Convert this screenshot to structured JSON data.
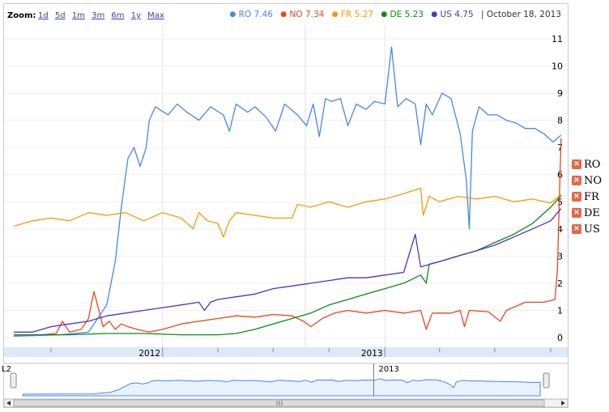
{
  "zoom": {
    "label": "Zoom:",
    "options": [
      "1d",
      "5d",
      "1m",
      "3m",
      "6m",
      "1y",
      "Max"
    ]
  },
  "readout": {
    "items": [
      {
        "code": "RO",
        "value": "7.46",
        "color": "#4a86e8"
      },
      {
        "code": "NO",
        "value": "7.34",
        "color": "#e8461c"
      },
      {
        "code": "FR",
        "value": "5.27",
        "color": "#f59a0a"
      },
      {
        "code": "DE",
        "value": "5.23",
        "color": "#0a8a18"
      },
      {
        "code": "US",
        "value": "4.75",
        "color": "#5533bb"
      }
    ],
    "date": "October 18, 2013"
  },
  "legend": {
    "items": [
      {
        "name": "RO",
        "icon": "remove-icon"
      },
      {
        "name": "NO",
        "icon": "remove-icon"
      },
      {
        "name": "FR",
        "icon": "remove-icon"
      },
      {
        "name": "DE",
        "icon": "remove-icon"
      },
      {
        "name": "US",
        "icon": "remove-icon"
      }
    ]
  },
  "navigator": {
    "tick_label": "2013",
    "left_label": "L2"
  },
  "chart_data": {
    "type": "line",
    "x_labels": [
      "2012",
      "2013"
    ],
    "x_label_dates": [
      "2012-01-01",
      "2013-01-01"
    ],
    "ylim": [
      0,
      11
    ],
    "y_ticks": [
      0,
      1,
      2,
      3,
      4,
      5,
      6,
      7,
      8,
      9,
      10,
      11
    ],
    "grid": true,
    "legend_position": "top-right",
    "series": [
      {
        "name": "RO",
        "color": "#4a86e8",
        "values": [
          [
            "2011-05-01",
            0.05
          ],
          [
            "2011-07-15",
            0.1
          ],
          [
            "2011-09-01",
            0.2
          ],
          [
            "2011-10-01",
            1.2
          ],
          [
            "2011-10-15",
            2.8
          ],
          [
            "2011-10-25",
            4.8
          ],
          [
            "2011-11-05",
            6.6
          ],
          [
            "2011-11-15",
            7.0
          ],
          [
            "2011-11-25",
            6.3
          ],
          [
            "2011-12-05",
            7.0
          ],
          [
            "2011-12-10",
            8.0
          ],
          [
            "2011-12-20",
            8.5
          ],
          [
            "2012-01-10",
            8.2
          ],
          [
            "2012-01-25",
            8.6
          ],
          [
            "2012-02-10",
            8.3
          ],
          [
            "2012-03-01",
            8.0
          ],
          [
            "2012-03-20",
            8.5
          ],
          [
            "2012-04-10",
            8.2
          ],
          [
            "2012-04-20",
            7.6
          ],
          [
            "2012-05-01",
            8.6
          ],
          [
            "2012-05-20",
            8.3
          ],
          [
            "2012-06-01",
            8.5
          ],
          [
            "2012-06-20",
            8.1
          ],
          [
            "2012-07-05",
            7.6
          ],
          [
            "2012-07-20",
            8.6
          ],
          [
            "2012-08-10",
            8.2
          ],
          [
            "2012-08-25",
            7.8
          ],
          [
            "2012-09-05",
            8.6
          ],
          [
            "2012-09-15",
            7.4
          ],
          [
            "2012-09-25",
            8.8
          ],
          [
            "2012-10-05",
            8.7
          ],
          [
            "2012-10-20",
            8.8
          ],
          [
            "2012-11-01",
            7.8
          ],
          [
            "2012-11-15",
            8.6
          ],
          [
            "2012-12-01",
            8.4
          ],
          [
            "2012-12-15",
            8.7
          ],
          [
            "2013-01-01",
            8.6
          ],
          [
            "2013-01-12",
            10.7
          ],
          [
            "2013-01-22",
            8.5
          ],
          [
            "2013-02-05",
            8.8
          ],
          [
            "2013-02-20",
            8.6
          ],
          [
            "2013-03-01",
            7.1
          ],
          [
            "2013-03-10",
            8.6
          ],
          [
            "2013-03-20",
            8.2
          ],
          [
            "2013-04-05",
            9.0
          ],
          [
            "2013-04-20",
            8.8
          ],
          [
            "2013-05-05",
            7.5
          ],
          [
            "2013-05-15",
            5.8
          ],
          [
            "2013-05-20",
            4.0
          ],
          [
            "2013-05-25",
            7.6
          ],
          [
            "2013-06-05",
            8.5
          ],
          [
            "2013-06-20",
            8.2
          ],
          [
            "2013-07-05",
            8.2
          ],
          [
            "2013-07-20",
            8.0
          ],
          [
            "2013-08-05",
            7.9
          ],
          [
            "2013-08-20",
            7.7
          ],
          [
            "2013-09-05",
            7.7
          ],
          [
            "2013-09-20",
            7.5
          ],
          [
            "2013-10-05",
            7.2
          ],
          [
            "2013-10-18",
            7.46
          ]
        ]
      },
      {
        "name": "NO",
        "color": "#e8461c",
        "values": [
          [
            "2011-05-01",
            0.1
          ],
          [
            "2011-06-15",
            0.1
          ],
          [
            "2011-07-10",
            0.15
          ],
          [
            "2011-07-20",
            0.6
          ],
          [
            "2011-08-01",
            0.2
          ],
          [
            "2011-08-20",
            0.3
          ],
          [
            "2011-09-01",
            0.7
          ],
          [
            "2011-09-10",
            1.7
          ],
          [
            "2011-09-25",
            0.4
          ],
          [
            "2011-10-05",
            0.6
          ],
          [
            "2011-10-15",
            0.3
          ],
          [
            "2011-10-25",
            0.5
          ],
          [
            "2011-11-05",
            0.4
          ],
          [
            "2011-11-20",
            0.3
          ],
          [
            "2011-12-10",
            0.2
          ],
          [
            "2012-01-01",
            0.3
          ],
          [
            "2012-02-01",
            0.5
          ],
          [
            "2012-03-01",
            0.6
          ],
          [
            "2012-04-01",
            0.7
          ],
          [
            "2012-05-01",
            0.8
          ],
          [
            "2012-06-01",
            0.75
          ],
          [
            "2012-07-01",
            0.85
          ],
          [
            "2012-08-01",
            0.8
          ],
          [
            "2012-08-20",
            0.6
          ],
          [
            "2012-09-01",
            0.4
          ],
          [
            "2012-09-20",
            0.7
          ],
          [
            "2012-10-10",
            0.9
          ],
          [
            "2012-11-01",
            1.0
          ],
          [
            "2012-12-01",
            0.9
          ],
          [
            "2013-01-01",
            1.0
          ],
          [
            "2013-02-01",
            0.9
          ],
          [
            "2013-03-01",
            1.0
          ],
          [
            "2013-03-10",
            0.3
          ],
          [
            "2013-03-20",
            0.9
          ],
          [
            "2013-04-20",
            0.9
          ],
          [
            "2013-05-05",
            1.0
          ],
          [
            "2013-05-12",
            0.4
          ],
          [
            "2013-05-20",
            1.0
          ],
          [
            "2013-06-20",
            0.95
          ],
          [
            "2013-07-10",
            0.6
          ],
          [
            "2013-07-20",
            1.0
          ],
          [
            "2013-08-20",
            1.3
          ],
          [
            "2013-09-20",
            1.3
          ],
          [
            "2013-10-08",
            1.4
          ],
          [
            "2013-10-12",
            2.5
          ],
          [
            "2013-10-18",
            7.34
          ]
        ]
      },
      {
        "name": "FR",
        "color": "#f59a0a",
        "values": [
          [
            "2011-05-01",
            4.1
          ],
          [
            "2011-06-01",
            4.3
          ],
          [
            "2011-07-01",
            4.4
          ],
          [
            "2011-08-01",
            4.3
          ],
          [
            "2011-09-01",
            4.6
          ],
          [
            "2011-10-01",
            4.5
          ],
          [
            "2011-11-01",
            4.6
          ],
          [
            "2011-12-01",
            4.3
          ],
          [
            "2012-01-01",
            4.6
          ],
          [
            "2012-02-01",
            4.4
          ],
          [
            "2012-02-20",
            4.0
          ],
          [
            "2012-03-01",
            4.6
          ],
          [
            "2012-03-15",
            4.3
          ],
          [
            "2012-04-01",
            4.2
          ],
          [
            "2012-04-10",
            3.7
          ],
          [
            "2012-04-20",
            4.3
          ],
          [
            "2012-05-01",
            4.6
          ],
          [
            "2012-06-01",
            4.5
          ],
          [
            "2012-07-01",
            4.4
          ],
          [
            "2012-08-01",
            4.4
          ],
          [
            "2012-08-10",
            4.9
          ],
          [
            "2012-09-01",
            4.8
          ],
          [
            "2012-10-01",
            5.0
          ],
          [
            "2012-11-01",
            4.8
          ],
          [
            "2012-12-01",
            5.0
          ],
          [
            "2013-01-01",
            5.1
          ],
          [
            "2013-02-01",
            5.3
          ],
          [
            "2013-03-01",
            5.5
          ],
          [
            "2013-03-05",
            4.5
          ],
          [
            "2013-03-15",
            5.2
          ],
          [
            "2013-04-01",
            5.0
          ],
          [
            "2013-05-01",
            5.2
          ],
          [
            "2013-06-01",
            5.1
          ],
          [
            "2013-07-01",
            5.2
          ],
          [
            "2013-08-01",
            5.0
          ],
          [
            "2013-09-01",
            5.1
          ],
          [
            "2013-10-01",
            4.95
          ],
          [
            "2013-10-18",
            5.27
          ]
        ]
      },
      {
        "name": "DE",
        "color": "#0a8a18",
        "values": [
          [
            "2011-05-01",
            0.1
          ],
          [
            "2011-08-01",
            0.1
          ],
          [
            "2011-10-01",
            0.15
          ],
          [
            "2011-12-01",
            0.15
          ],
          [
            "2012-02-01",
            0.1
          ],
          [
            "2012-04-01",
            0.1
          ],
          [
            "2012-05-01",
            0.15
          ],
          [
            "2012-06-01",
            0.3
          ],
          [
            "2012-07-01",
            0.5
          ],
          [
            "2012-08-01",
            0.7
          ],
          [
            "2012-09-01",
            0.9
          ],
          [
            "2012-10-01",
            1.2
          ],
          [
            "2012-11-01",
            1.4
          ],
          [
            "2012-12-01",
            1.6
          ],
          [
            "2013-01-01",
            1.8
          ],
          [
            "2013-02-01",
            2.0
          ],
          [
            "2013-03-01",
            2.3
          ],
          [
            "2013-03-10",
            2.0
          ],
          [
            "2013-03-15",
            2.7
          ],
          [
            "2013-04-01",
            2.8
          ],
          [
            "2013-05-01",
            3.0
          ],
          [
            "2013-06-01",
            3.2
          ],
          [
            "2013-07-01",
            3.5
          ],
          [
            "2013-08-01",
            3.8
          ],
          [
            "2013-09-01",
            4.2
          ],
          [
            "2013-10-01",
            4.8
          ],
          [
            "2013-10-18",
            5.23
          ]
        ]
      },
      {
        "name": "US",
        "color": "#5533bb",
        "values": [
          [
            "2011-05-01",
            0.2
          ],
          [
            "2011-06-01",
            0.2
          ],
          [
            "2011-07-01",
            0.4
          ],
          [
            "2011-08-01",
            0.5
          ],
          [
            "2011-09-01",
            0.6
          ],
          [
            "2011-10-01",
            0.8
          ],
          [
            "2011-11-01",
            0.9
          ],
          [
            "2011-12-01",
            1.0
          ],
          [
            "2012-01-01",
            1.1
          ],
          [
            "2012-02-01",
            1.2
          ],
          [
            "2012-03-01",
            1.3
          ],
          [
            "2012-03-10",
            1.0
          ],
          [
            "2012-03-20",
            1.3
          ],
          [
            "2012-04-01",
            1.4
          ],
          [
            "2012-05-01",
            1.5
          ],
          [
            "2012-06-01",
            1.6
          ],
          [
            "2012-07-01",
            1.8
          ],
          [
            "2012-08-01",
            1.9
          ],
          [
            "2012-09-01",
            2.0
          ],
          [
            "2012-10-01",
            2.1
          ],
          [
            "2012-11-01",
            2.2
          ],
          [
            "2012-12-01",
            2.2
          ],
          [
            "2013-01-01",
            2.3
          ],
          [
            "2013-02-01",
            2.4
          ],
          [
            "2013-02-20",
            3.8
          ],
          [
            "2013-03-01",
            2.6
          ],
          [
            "2013-04-01",
            2.8
          ],
          [
            "2013-05-01",
            3.0
          ],
          [
            "2013-06-01",
            3.2
          ],
          [
            "2013-07-01",
            3.4
          ],
          [
            "2013-08-01",
            3.7
          ],
          [
            "2013-09-01",
            4.0
          ],
          [
            "2013-10-01",
            4.3
          ],
          [
            "2013-10-18",
            4.75
          ]
        ]
      }
    ]
  }
}
